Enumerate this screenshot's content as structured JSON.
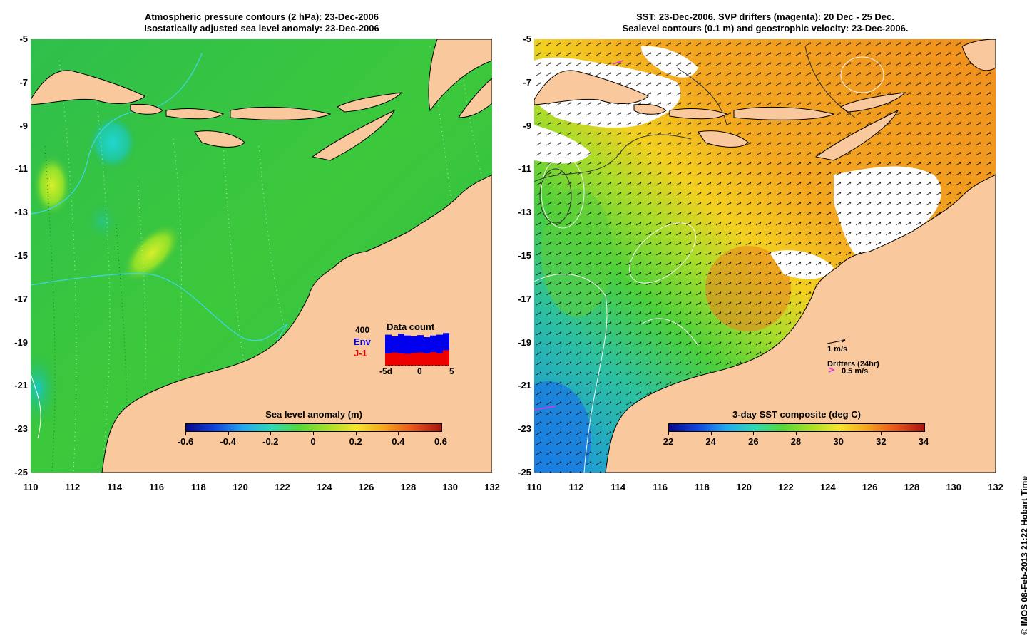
{
  "left_panel": {
    "title_line1": "Atmospheric pressure contours (2 hPa): 23-Dec-2006",
    "title_line2": "Isostatically adjusted sea level anomaly: 23-Dec-2006",
    "colorbar_title": "Sea level anomaly (m)",
    "colorbar_labels": [
      "-0.6",
      "-0.4",
      "-0.2",
      "0",
      "0.2",
      "0.4",
      "0.6"
    ],
    "inset": {
      "title": "Data count",
      "count_label": "400",
      "env_label": "Env",
      "j1_label": "J-1",
      "x_labels": [
        "-5d",
        "0",
        "5"
      ],
      "env_color": "#0000ee",
      "j1_color": "#ee0000",
      "env_values": [
        380,
        360,
        390,
        370,
        360,
        375,
        350,
        370,
        380,
        400
      ],
      "j1_values": [
        150,
        160,
        150,
        145,
        155,
        160,
        150,
        165,
        150,
        190
      ]
    }
  },
  "right_panel": {
    "title_line1": "SST: 23-Dec-2006. SVP drifters (magenta): 20 Dec - 25 Dec.",
    "title_line2": "Sealevel contours (0.1 m) and geostrophic velocity: 23-Dec-2006.",
    "colorbar_title": "3-day SST composite (deg C)",
    "colorbar_labels": [
      "22",
      "24",
      "26",
      "28",
      "30",
      "32",
      "34"
    ],
    "velocity_label": "1 m/s",
    "drifters_label": "Drifters (24hr)",
    "drifter_speed_label": "0.5 m/s",
    "drifter_color": "#dd33dd"
  },
  "y_axis_labels": [
    "-5",
    "-7",
    "-9",
    "-11",
    "-13",
    "-15",
    "-17",
    "-19",
    "-21",
    "-23",
    "-25"
  ],
  "x_axis_labels": [
    "110",
    "112",
    "114",
    "116",
    "118",
    "120",
    "122",
    "124",
    "126",
    "128",
    "130",
    "132"
  ],
  "credit": "© IMOS 08-Feb-2013 21:22 Hobart Time",
  "colors": {
    "land": "#f9c89c",
    "ocean_green": "#2ebd45",
    "sst_orange": "#f39a1f"
  }
}
